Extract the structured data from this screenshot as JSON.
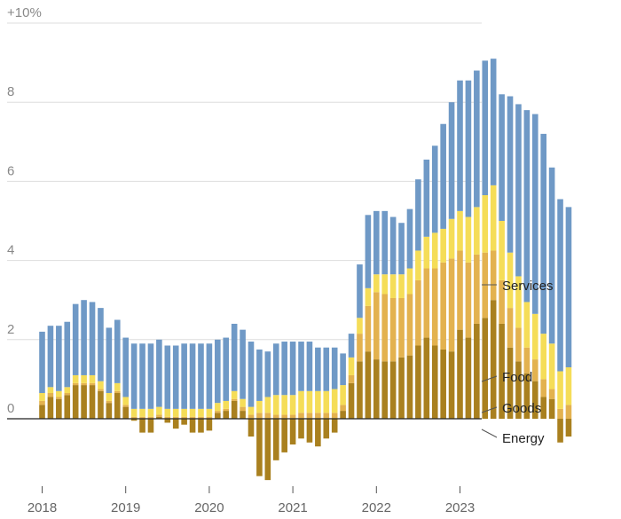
{
  "chart_data": {
    "type": "bar",
    "stacked": true,
    "title": "",
    "xlabel": "",
    "ylabel": "",
    "ylim": [
      -1.7,
      10
    ],
    "y_ticks": [
      {
        "value": 10,
        "label": "+10%"
      },
      {
        "value": 8,
        "label": "8"
      },
      {
        "value": 6,
        "label": "6"
      },
      {
        "value": 4,
        "label": "4"
      },
      {
        "value": 2,
        "label": "2"
      },
      {
        "value": 0,
        "label": "0"
      }
    ],
    "x_ticks": [
      {
        "label": "2018",
        "index": 0
      },
      {
        "label": "2019",
        "index": 10
      },
      {
        "label": "2020",
        "index": 20
      },
      {
        "label": "2021",
        "index": 30
      },
      {
        "label": "2022",
        "index": 40
      },
      {
        "label": "2023",
        "index": 50
      }
    ],
    "categories": [
      "2018-01",
      "2018-02",
      "2018-03",
      "2018-04",
      "2018-05",
      "2018-06",
      "2018-07",
      "2018-08",
      "2018-09",
      "2018-10",
      "2018-11",
      "2018-12",
      "2019-01",
      "2019-02",
      "2019-03",
      "2019-04",
      "2019-05",
      "2019-06",
      "2019-07",
      "2019-08",
      "2019-09",
      "2019-10",
      "2019-11",
      "2019-12",
      "2020-01",
      "2020-02",
      "2020-03",
      "2020-04",
      "2020-05",
      "2020-06",
      "2020-07",
      "2020-08",
      "2020-09",
      "2020-10",
      "2020-11",
      "2020-12",
      "2021-01",
      "2021-02",
      "2021-03",
      "2021-04",
      "2021-05",
      "2021-06",
      "2021-07",
      "2021-08",
      "2021-09",
      "2021-10",
      "2021-11",
      "2021-12",
      "2022-01",
      "2022-02",
      "2022-03",
      "2022-04",
      "2022-05",
      "2022-06",
      "2022-07",
      "2022-08",
      "2022-09",
      "2022-10",
      "2022-11",
      "2022-12",
      "2023-01",
      "2023-02",
      "2023-03",
      "2023-04"
    ],
    "series": [
      {
        "name": "Energy",
        "color": "#a9801f",
        "values": [
          0.35,
          0.55,
          0.5,
          0.6,
          0.85,
          0.85,
          0.85,
          0.7,
          0.4,
          0.65,
          0.3,
          -0.05,
          -0.35,
          -0.35,
          0.05,
          -0.1,
          -0.25,
          -0.15,
          -0.35,
          -0.35,
          -0.3,
          0.15,
          0.2,
          0.45,
          0.2,
          -0.45,
          -1.45,
          -1.55,
          -1.05,
          -0.85,
          -0.65,
          -0.5,
          -0.6,
          -0.7,
          -0.5,
          -0.35,
          0.2,
          0.9,
          1.45,
          1.7,
          1.5,
          1.45,
          1.45,
          1.55,
          1.6,
          1.85,
          2.05,
          1.85,
          1.75,
          1.7,
          2.25,
          2.05,
          2.4,
          2.55,
          3.0,
          2.4,
          1.8,
          1.45,
          1.15,
          0.95,
          0.55,
          0.5,
          -0.6,
          -0.45
        ]
      },
      {
        "name": "Goods",
        "color": "#e3b24f",
        "values": [
          0.1,
          0.1,
          0.05,
          0.05,
          0.05,
          0.05,
          0.05,
          0.05,
          0.05,
          0.05,
          0.05,
          0.05,
          0.05,
          0.05,
          0.05,
          0.05,
          0.05,
          0.05,
          0.05,
          0.05,
          0.05,
          0.05,
          0.05,
          0.05,
          0.1,
          0.1,
          0.15,
          0.15,
          0.1,
          0.1,
          0.1,
          0.15,
          0.15,
          0.15,
          0.15,
          0.15,
          0.15,
          0.2,
          0.7,
          1.15,
          1.7,
          1.7,
          1.6,
          1.5,
          1.55,
          1.65,
          1.75,
          1.95,
          2.2,
          2.35,
          2.0,
          1.9,
          1.75,
          1.65,
          1.25,
          1.1,
          1.0,
          0.85,
          0.65,
          0.55,
          0.45,
          0.25,
          0.25,
          0.35
        ]
      },
      {
        "name": "Food",
        "color": "#f5dd58",
        "values": [
          0.2,
          0.15,
          0.15,
          0.15,
          0.2,
          0.2,
          0.2,
          0.2,
          0.2,
          0.2,
          0.2,
          0.2,
          0.2,
          0.2,
          0.2,
          0.2,
          0.2,
          0.2,
          0.2,
          0.2,
          0.2,
          0.2,
          0.2,
          0.2,
          0.2,
          0.2,
          0.3,
          0.4,
          0.5,
          0.5,
          0.5,
          0.55,
          0.55,
          0.55,
          0.55,
          0.6,
          0.5,
          0.45,
          0.4,
          0.45,
          0.45,
          0.5,
          0.6,
          0.6,
          0.65,
          0.75,
          0.8,
          0.9,
          0.85,
          1.0,
          1.0,
          1.15,
          1.2,
          1.45,
          1.65,
          1.5,
          1.4,
          1.3,
          1.15,
          1.15,
          1.15,
          1.15,
          0.95,
          0.95
        ]
      },
      {
        "name": "Services",
        "color": "#6f99c6",
        "values": [
          1.55,
          1.55,
          1.65,
          1.65,
          1.8,
          1.9,
          1.85,
          1.85,
          1.65,
          1.6,
          1.5,
          1.65,
          1.65,
          1.65,
          1.7,
          1.6,
          1.6,
          1.65,
          1.65,
          1.65,
          1.65,
          1.6,
          1.6,
          1.7,
          1.75,
          1.65,
          1.3,
          1.15,
          1.3,
          1.35,
          1.35,
          1.25,
          1.25,
          1.1,
          1.1,
          1.05,
          0.8,
          0.6,
          1.35,
          1.85,
          1.6,
          1.6,
          1.45,
          1.3,
          1.5,
          1.8,
          1.95,
          2.2,
          2.65,
          2.95,
          3.3,
          3.45,
          3.45,
          3.4,
          3.2,
          3.2,
          3.95,
          4.35,
          4.85,
          5.05,
          5.05,
          4.45,
          4.35,
          4.05
        ]
      }
    ],
    "legend_labels": {
      "services": "Services",
      "food": "Food",
      "goods": "Goods",
      "energy": "Energy"
    }
  }
}
